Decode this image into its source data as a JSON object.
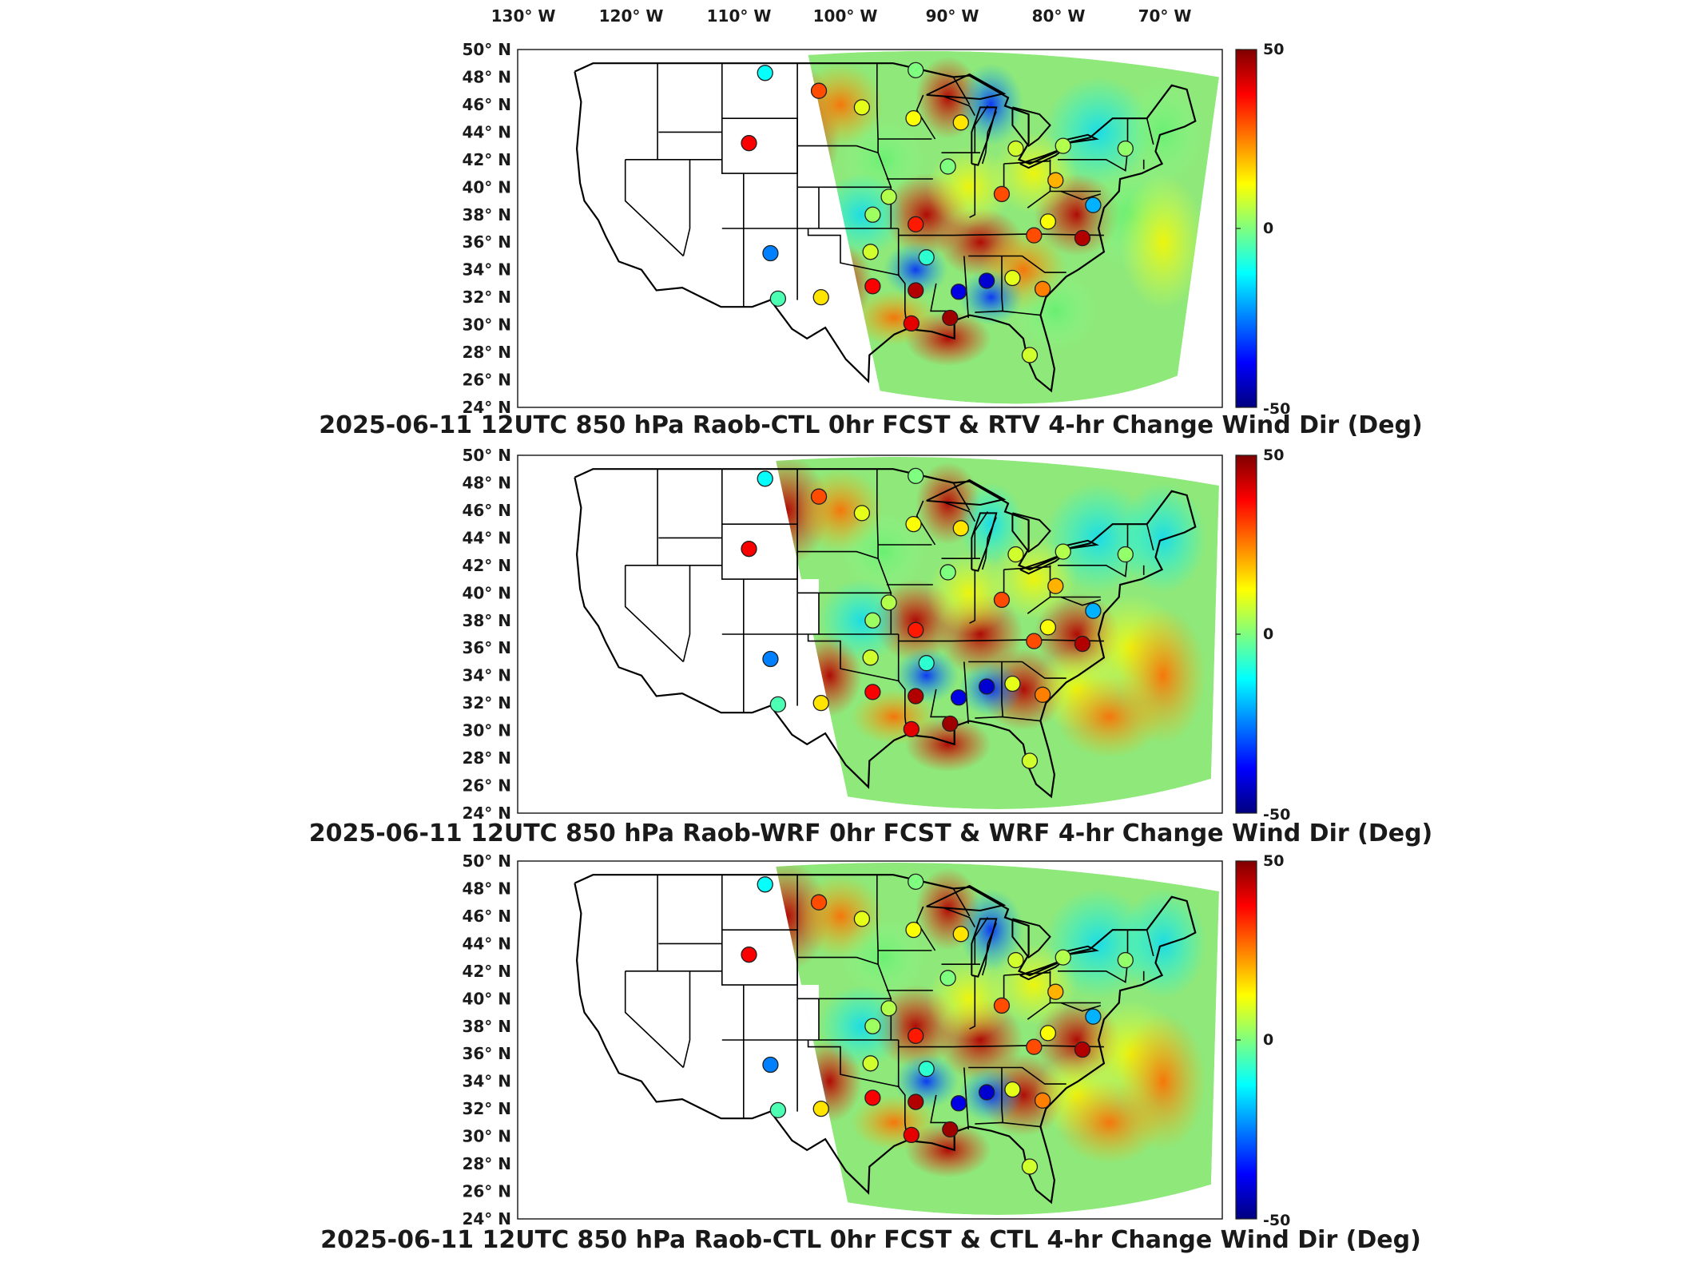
{
  "figure": {
    "top_axis_labels": [
      "130° W",
      "120° W",
      "110° W",
      "100° W",
      "90° W",
      "80° W",
      "70° W"
    ],
    "lat_labels": [
      "50° N",
      "48° N",
      "46° N",
      "44° N",
      "42° N",
      "40° N",
      "38° N",
      "36° N",
      "34° N",
      "32° N",
      "30° N",
      "28° N",
      "26° N",
      "24° N"
    ],
    "colorbar_ticks": [
      "50",
      "0",
      "-50"
    ],
    "colormap": [
      "#00007f",
      "#0000ff",
      "#007fff",
      "#00ffff",
      "#7fff7f",
      "#ffff00",
      "#ff7f00",
      "#ff0000",
      "#7f0000"
    ]
  },
  "panels": [
    {
      "title": "2025-06-11 12UTC 850 hPa Raob-CTL 0hr FCST & RTV 4-hr Change Wind Dir (Deg)"
    },
    {
      "title": "2025-06-11 12UTC 850 hPa Raob-WRF 0hr FCST & WRF 4-hr Change Wind Dir (Deg)"
    },
    {
      "title": "2025-06-11 12UTC 850 hPa Raob-CTL 0hr FCST & CTL 4-hr Change Wind Dir (Deg)"
    }
  ],
  "chart_data": {
    "type": "heatmap",
    "x_range_deg_lon": [
      -130,
      -65
    ],
    "y_range_deg_lat": [
      24,
      50
    ],
    "colorbar_range": [
      -50,
      50
    ],
    "stations": [
      {
        "lon": -107,
        "lat": 48.3,
        "value": -12
      },
      {
        "lon": -102,
        "lat": 47,
        "value": 30
      },
      {
        "lon": -98,
        "lat": 45.8,
        "value": 10
      },
      {
        "lon": -93.2,
        "lat": 45,
        "value": 12
      },
      {
        "lon": -93,
        "lat": 48.5,
        "value": 0
      },
      {
        "lon": -88.8,
        "lat": 44.7,
        "value": 15
      },
      {
        "lon": -108.5,
        "lat": 43.2,
        "value": 38
      },
      {
        "lon": -90,
        "lat": 41.5,
        "value": 0
      },
      {
        "lon": -83.7,
        "lat": 42.8,
        "value": 8
      },
      {
        "lon": -79.3,
        "lat": 43,
        "value": 5
      },
      {
        "lon": -73.5,
        "lat": 42.8,
        "value": 2
      },
      {
        "lon": -97,
        "lat": 38,
        "value": 3
      },
      {
        "lon": -93,
        "lat": 37.3,
        "value": 35
      },
      {
        "lon": -95.5,
        "lat": 39.3,
        "value": 5
      },
      {
        "lon": -85,
        "lat": 39.5,
        "value": 30
      },
      {
        "lon": -80,
        "lat": 40.5,
        "value": 20
      },
      {
        "lon": -82,
        "lat": 36.5,
        "value": 30
      },
      {
        "lon": -77.5,
        "lat": 36.3,
        "value": 45
      },
      {
        "lon": -80.7,
        "lat": 37.5,
        "value": 12
      },
      {
        "lon": -76.5,
        "lat": 38.7,
        "value": -20
      },
      {
        "lon": -106.5,
        "lat": 35.2,
        "value": -25
      },
      {
        "lon": -97.2,
        "lat": 35.3,
        "value": 8
      },
      {
        "lon": -92,
        "lat": 34.9,
        "value": -8
      },
      {
        "lon": -101.8,
        "lat": 32,
        "value": 15
      },
      {
        "lon": -97,
        "lat": 32.8,
        "value": 38
      },
      {
        "lon": -93,
        "lat": 32.5,
        "value": 45
      },
      {
        "lon": -89,
        "lat": 32.4,
        "value": -40
      },
      {
        "lon": -86.4,
        "lat": 33.2,
        "value": -42
      },
      {
        "lon": -84,
        "lat": 33.4,
        "value": 10
      },
      {
        "lon": -81.2,
        "lat": 32.6,
        "value": 25
      },
      {
        "lon": -89.8,
        "lat": 30.5,
        "value": 47
      },
      {
        "lon": -105.8,
        "lat": 31.9,
        "value": -5
      },
      {
        "lon": -82.4,
        "lat": 27.8,
        "value": 8
      },
      {
        "lon": -93.4,
        "lat": 30.1,
        "value": 40
      }
    ]
  }
}
